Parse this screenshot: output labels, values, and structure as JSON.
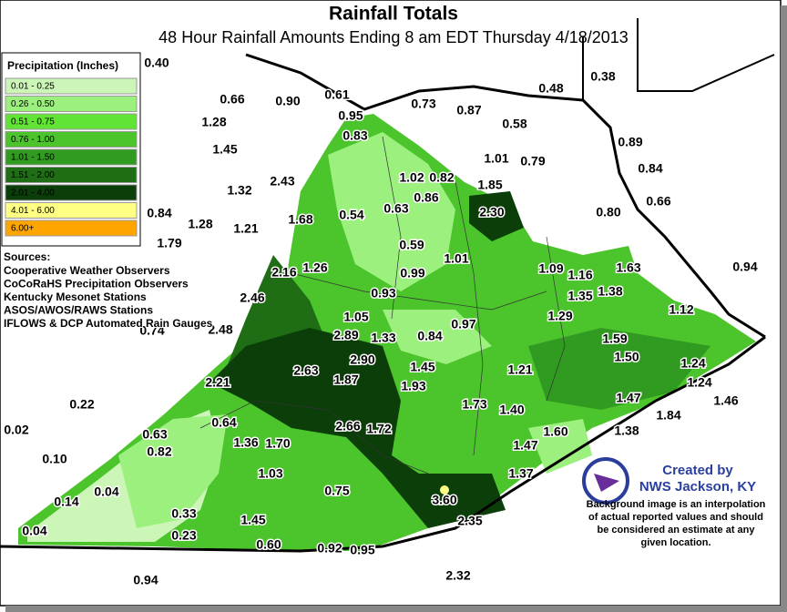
{
  "header": {
    "title": "Rainfall Totals",
    "subtitle": "48 Hour Rainfall Amounts Ending 8 am EDT Thursday 4/18/2013"
  },
  "legend": {
    "title": "Precipitation (Inches)",
    "items": [
      {
        "label": "0.01 - 0.25",
        "color": "#ccf5b8"
      },
      {
        "label": "0.26 - 0.50",
        "color": "#9cf07e"
      },
      {
        "label": "0.51 - 0.75",
        "color": "#62e436"
      },
      {
        "label": "0.76 - 1.00",
        "color": "#4cc42c"
      },
      {
        "label": "1.01 - 1.50",
        "color": "#319a20"
      },
      {
        "label": "1.51 - 2.00",
        "color": "#1f6d15"
      },
      {
        "label": "2.01 - 4.00",
        "color": "#0b3e09"
      },
      {
        "label": "4.01 - 6.00",
        "color": "#ffff84"
      },
      {
        "label": "6.00+",
        "color": "#ffa500"
      }
    ]
  },
  "sources": {
    "title": "Sources:",
    "lines": [
      "Cooperative Weather Observers",
      "CoCoRaHS Precipitation Observers",
      "Kentucky Mesonet Stations",
      "ASOS/AWOS/RAWS Stations",
      "IFLOWS & DCP Automated Rain Gauges"
    ]
  },
  "credit": {
    "title": "Created by",
    "org": "NWS Jackson, KY",
    "note": [
      "Background image is an interpolation",
      "of actual reported values and should",
      "be considered an estimate at any",
      "given location."
    ]
  },
  "stations": [
    "0.40",
    "0.66",
    "0.90",
    "0.61",
    "0.73",
    "0.87",
    "0.48",
    "0.38",
    "1.28",
    "0.95",
    "0.58",
    "0.83",
    "1.45",
    "0.89",
    "1.01",
    "0.79",
    "0.84",
    "1.02",
    "0.82",
    "1.85",
    "2.43",
    "1.32",
    "0.86",
    "0.66",
    "0.63",
    "0.54",
    "2.30",
    "0.84",
    "1.28",
    "1.68",
    "0.80",
    "1.21",
    "1.79",
    "0.59",
    "1.01",
    "0.94",
    "1.09",
    "1.16",
    "1.63",
    "2.16",
    "1.26",
    "0.99",
    "1.35",
    "1.38",
    "2.46",
    "0.93",
    "1.12",
    "1.05",
    "1.29",
    "0.74",
    "2.48",
    "2.89",
    "1.33",
    "0.84",
    "0.97",
    "1.59",
    "2.90",
    "1.50",
    "1.24",
    "2.63",
    "1.87",
    "1.45",
    "1.21",
    "2.21",
    "1.24",
    "1.93",
    "0.22",
    "1.47",
    "1.46",
    "1.73",
    "1.40",
    "1.84",
    "2.66",
    "1.72",
    "0.64",
    "1.38",
    "0.02",
    "1.60",
    "0.63",
    "1.36",
    "1.70",
    "0.82",
    "1.47",
    "0.10",
    "1.03",
    "1.37",
    "0.04",
    "0.75",
    "0.14",
    "3.60",
    "0.33",
    "1.45",
    "2.35",
    "0.04",
    "0.23",
    "0.60",
    "0.92",
    "0.95",
    "0.94",
    "2.32"
  ]
}
